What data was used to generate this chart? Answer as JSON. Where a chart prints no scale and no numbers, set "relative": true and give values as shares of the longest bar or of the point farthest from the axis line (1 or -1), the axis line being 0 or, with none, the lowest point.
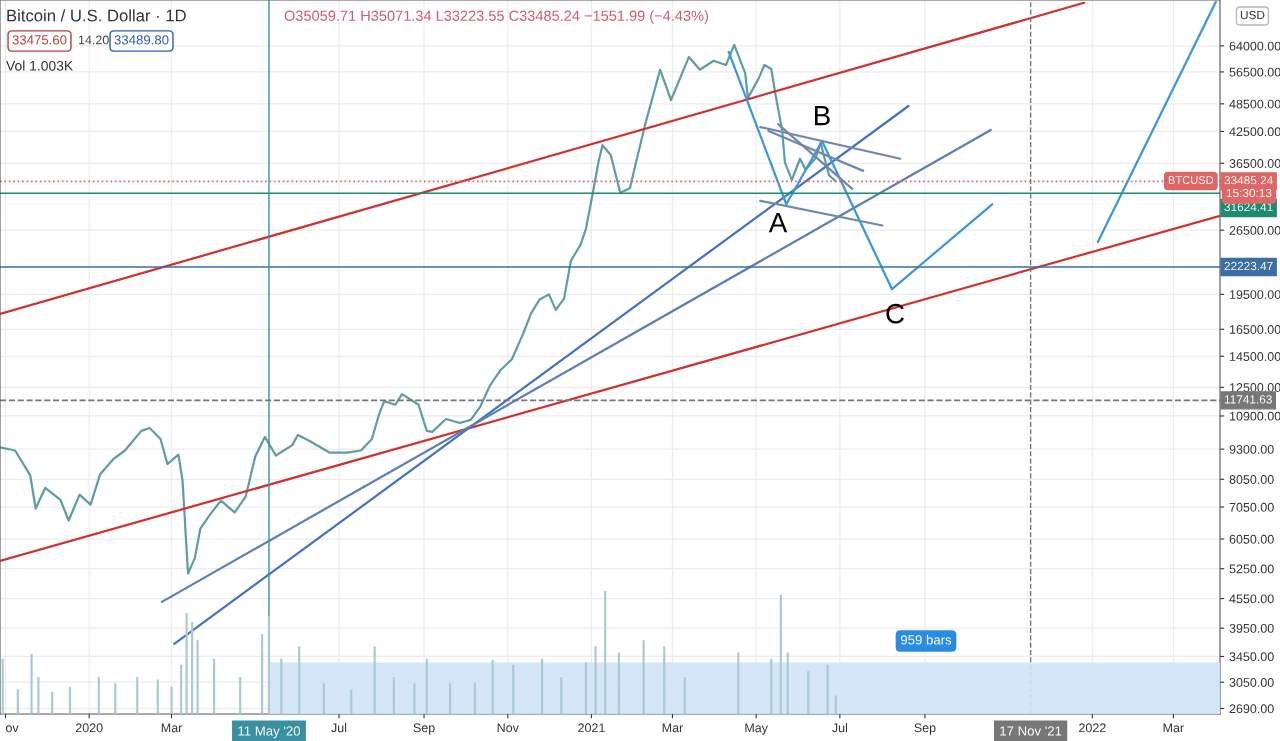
{
  "chart_data": [
    {
      "type": "line",
      "title": "Bitcoin / U.S. Dollar · 1D",
      "log": "y",
      "grid": true,
      "xlim": [
        "2019-10-28",
        "2022-04-04"
      ],
      "xticks": [
        {
          "value": "2019-11-01",
          "label": "ov"
        },
        {
          "value": "2020-01-01",
          "label": "2020"
        },
        {
          "value": "2020-03-01",
          "label": "Mar"
        },
        {
          "value": "2020-07-01",
          "label": "Jul"
        },
        {
          "value": "2020-09-01",
          "label": "Sep"
        },
        {
          "value": "2020-11-01",
          "label": "Nov"
        },
        {
          "value": "2021-01-01",
          "label": "2021"
        },
        {
          "value": "2021-03-01",
          "label": "Mar"
        },
        {
          "value": "2021-05-01",
          "label": "May"
        },
        {
          "value": "2021-07-01",
          "label": "Jul"
        },
        {
          "value": "2021-09-01",
          "label": "Sep"
        },
        {
          "value": "2022-01-01",
          "label": "2022"
        },
        {
          "value": "2022-03-01",
          "label": "Mar"
        }
      ],
      "ylim": [
        2620,
        79700
      ],
      "yticks": [
        {
          "value": 64000,
          "label": "64000.00"
        },
        {
          "value": 56500,
          "label": "56500.00"
        },
        {
          "value": 48500,
          "label": "48500.00"
        },
        {
          "value": 42500,
          "label": "42500.00"
        },
        {
          "value": 36500,
          "label": "36500.00"
        },
        {
          "value": 26500,
          "label": "26500.00"
        },
        {
          "value": 19500,
          "label": "19500.00"
        },
        {
          "value": 16500,
          "label": "16500.00"
        },
        {
          "value": 14500,
          "label": "14500.00"
        },
        {
          "value": 12500,
          "label": "12500.00"
        },
        {
          "value": 10900,
          "label": "10900.00"
        },
        {
          "value": 9300,
          "label": "9300.00"
        },
        {
          "value": 8050,
          "label": "8050.00"
        },
        {
          "value": 7050,
          "label": "7050.00"
        },
        {
          "value": 6050,
          "label": "6050.00"
        },
        {
          "value": 5250,
          "label": "5250.00"
        },
        {
          "value": 4550,
          "label": "4550.00"
        },
        {
          "value": 3950,
          "label": "3950.00"
        },
        {
          "value": 3450,
          "label": "3450.00"
        },
        {
          "value": 3050,
          "label": "3050.00"
        },
        {
          "value": 2690,
          "label": "2690.00"
        }
      ],
      "series": [
        {
          "color": "#5f9ea0",
          "x": [
            "2019-10-28",
            "2019-11-08",
            "2019-11-19",
            "2019-11-23",
            "2019-11-30",
            "2019-12-11",
            "2019-12-17",
            "2019-12-25",
            "2020-01-02",
            "2020-01-09",
            "2020-01-19",
            "2020-01-27",
            "2020-02-08",
            "2020-02-14",
            "2020-02-22",
            "2020-02-27",
            "2020-03-06",
            "2020-03-09",
            "2020-03-13",
            "2020-03-18",
            "2020-03-22",
            "2020-03-29",
            "2020-04-06",
            "2020-04-16",
            "2020-04-24",
            "2020-05-01",
            "2020-05-08",
            "2020-05-16",
            "2020-05-28",
            "2020-06-01",
            "2020-06-10",
            "2020-06-24",
            "2020-07-07",
            "2020-07-17",
            "2020-07-25",
            "2020-07-30",
            "2020-08-03",
            "2020-08-11",
            "2020-08-16",
            "2020-08-28",
            "2020-09-03",
            "2020-09-07",
            "2020-09-17",
            "2020-09-27",
            "2020-10-05",
            "2020-10-12",
            "2020-10-19",
            "2020-10-27",
            "2020-11-04",
            "2020-11-12",
            "2020-11-18",
            "2020-11-24",
            "2020-12-01",
            "2020-12-06",
            "2020-12-12",
            "2020-12-17",
            "2020-12-24",
            "2020-12-28",
            "2021-01-02",
            "2021-01-06",
            "2021-01-09",
            "2021-01-15",
            "2021-01-22",
            "2021-01-29",
            "2021-02-02",
            "2021-02-09",
            "2021-02-20",
            "2021-02-28",
            "2021-03-13",
            "2021-03-21",
            "2021-03-31",
            "2021-04-09",
            "2021-04-15",
            "2021-04-23",
            "2021-04-25",
            "2021-05-03",
            "2021-05-07",
            "2021-05-12",
            "2021-05-15",
            "2021-05-20",
            "2021-05-22",
            "2021-05-27",
            "2021-06-02",
            "2021-06-06",
            "2021-06-13",
            "2021-06-17",
            "2021-06-23",
            "2021-06-28"
          ],
          "values": [
            9380,
            9240,
            8210,
            7000,
            7730,
            7300,
            6610,
            7480,
            7130,
            8250,
            8890,
            9240,
            10150,
            10290,
            9760,
            8660,
            9060,
            8020,
            5130,
            5530,
            6360,
            6800,
            7270,
            6870,
            7410,
            8980,
            9860,
            9020,
            9480,
            9950,
            9660,
            9150,
            9150,
            9240,
            9760,
            10940,
            11700,
            11500,
            12100,
            11500,
            10150,
            10100,
            10740,
            10540,
            10700,
            11400,
            12600,
            13600,
            14300,
            16100,
            17800,
            19000,
            19500,
            18100,
            19100,
            22900,
            24700,
            26700,
            31700,
            36600,
            39800,
            38000,
            31700,
            32400,
            36200,
            43800,
            57100,
            49400,
            60700,
            57100,
            59600,
            58400,
            64300,
            56200,
            49900,
            54900,
            58400,
            57300,
            50900,
            42600,
            36600,
            33700,
            37300,
            35400,
            37300,
            40200,
            34500,
            33485.24
          ]
        },
        {
          "color": "#d32f2f",
          "x": [
            "2019-10-28",
            "2021-12-26"
          ],
          "values": [
            17760,
            78650
          ]
        },
        {
          "color": "#d32f2f",
          "x": [
            "2019-10-28",
            "2022-04-04"
          ],
          "values": [
            5450,
            28400
          ]
        },
        {
          "color": "#4472c4",
          "x": [
            "2020-03-03",
            "2021-08-20"
          ],
          "values": [
            3665,
            48000
          ]
        },
        {
          "color": "#5b7fb5",
          "x": [
            "2020-02-23",
            "2021-10-19"
          ],
          "values": [
            4480,
            42800
          ]
        },
        {
          "color": "#3a96dd",
          "x": [
            "2021-04-11",
            "2021-05-23",
            "2021-06-18",
            "2021-08-08",
            "2021-10-20"
          ],
          "values": [
            62200,
            30000,
            40600,
            19990,
            30000
          ]
        },
        {
          "color": "#3a96dd",
          "x": [
            "2022-01-05",
            "2022-04-01"
          ],
          "values": [
            25040,
            79000
          ]
        },
        {
          "color": "#7088b0",
          "x": [
            "2021-05-04",
            "2021-08-14"
          ],
          "values": [
            43400,
            37300
          ]
        },
        {
          "color": "#7088b0",
          "x": [
            "2021-05-10",
            "2021-07-18"
          ],
          "values": [
            42600,
            35200
          ]
        },
        {
          "color": "#7088b0",
          "x": [
            "2021-05-17",
            "2021-07-10"
          ],
          "values": [
            44000,
            32300
          ]
        },
        {
          "color": "#7088b0",
          "x": [
            "2021-05-04",
            "2021-08-01"
          ],
          "values": [
            30500,
            27100
          ]
        }
      ],
      "ref_lines": [
        {
          "axis": "y",
          "value": 31624.41,
          "label": "31624.41",
          "color": "#1e8a6e"
        },
        {
          "axis": "y",
          "value": 22223.47,
          "label": "22223.47",
          "color": "#3a6ea5"
        },
        {
          "axis": "y",
          "value": 33485.24,
          "label": "33485.24",
          "color": "#e06666",
          "line_style": "dotted"
        },
        {
          "axis": "y",
          "value": 11741.63,
          "label": "11741.63",
          "color": "#777777",
          "line_style": "dashed"
        },
        {
          "axis": "x",
          "value": "2020-05-11",
          "label": "11 May '20",
          "color": "#3a8fa0"
        },
        {
          "axis": "x",
          "value": "2021-11-17",
          "label": "17 Nov '21",
          "color": "#777777",
          "line_style": "dashed"
        }
      ],
      "annotations": [
        "O35059.71 H35071.34 L33223.55 C33485.24 −1551.99 (−4.43%)",
        "33475.60",
        "14.20",
        "33489.80",
        "Vol 1.003K",
        "USD",
        "BTCUSD",
        "15:30:13",
        "A",
        "B",
        "C"
      ]
    },
    {
      "type": "bar",
      "relative": true,
      "xlim": [
        "2019-10-28",
        "2022-04-04"
      ],
      "color": "#a9cbd0",
      "x": [
        "2019-10-30",
        "2019-11-10",
        "2019-11-20",
        "2019-11-25",
        "2019-12-05",
        "2019-12-18",
        "2020-01-08",
        "2020-01-20",
        "2020-02-05",
        "2020-02-20",
        "2020-03-01",
        "2020-03-08",
        "2020-03-12",
        "2020-03-16",
        "2020-03-20",
        "2020-04-01",
        "2020-04-20",
        "2020-05-06",
        "2020-05-11",
        "2020-05-20",
        "2020-06-02",
        "2020-06-20",
        "2020-07-10",
        "2020-07-27",
        "2020-08-10",
        "2020-08-25",
        "2020-09-03",
        "2020-09-20",
        "2020-10-08",
        "2020-10-21",
        "2020-11-05",
        "2020-11-26",
        "2020-12-10",
        "2020-12-28",
        "2021-01-04",
        "2021-01-11",
        "2021-01-21",
        "2021-02-08",
        "2021-02-23",
        "2021-03-10",
        "2021-04-18",
        "2021-05-12",
        "2021-05-19",
        "2021-05-24",
        "2021-06-08",
        "2021-06-22",
        "2021-06-28"
      ],
      "values": [
        0.45,
        0.2,
        0.49,
        0.3,
        0.18,
        0.22,
        0.3,
        0.25,
        0.3,
        0.28,
        0.22,
        0.4,
        0.82,
        0.75,
        0.6,
        0.45,
        0.3,
        0.65,
        0.8,
        0.45,
        0.55,
        0.25,
        0.2,
        0.55,
        0.3,
        0.25,
        0.45,
        0.25,
        0.25,
        0.44,
        0.4,
        0.45,
        0.3,
        0.42,
        0.55,
        1.0,
        0.5,
        0.6,
        0.55,
        0.3,
        0.5,
        0.45,
        0.97,
        0.5,
        0.35,
        0.4,
        0.15
      ],
      "bands": [
        {
          "axis": "x",
          "from": "2020-05-11",
          "to": "2022-04-04",
          "color": "#cfe3f7"
        }
      ],
      "annotations": [
        "959 bars"
      ]
    }
  ]
}
